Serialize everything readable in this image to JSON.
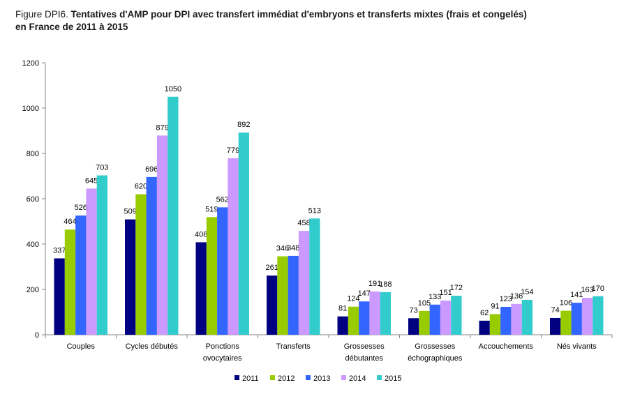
{
  "title_prefix": "Figure DPI6.",
  "title_line1": "Tentatives d'AMP pour DPI avec transfert immédiat d'embryons et transferts mixtes (frais et congelés)",
  "title_line2": "en France de 2011 à 2015",
  "chart_data": {
    "type": "bar",
    "ylim": [
      0,
      1200
    ],
    "yticks": [
      0,
      200,
      400,
      600,
      800,
      1000,
      1200
    ],
    "grid": false,
    "legend_position": "bottom",
    "categories": [
      [
        "Couples"
      ],
      [
        "Cycles débutés"
      ],
      [
        "Ponctions",
        "ovocytaires"
      ],
      [
        "Transferts"
      ],
      [
        "Grossesses",
        "débutantes"
      ],
      [
        "Grossesses",
        "échographiques"
      ],
      [
        "Accouchements"
      ],
      [
        "Nés vivants"
      ]
    ],
    "series": [
      {
        "name": "2011",
        "color": "#000080",
        "values": [
          337,
          509,
          408,
          261,
          81,
          73,
          62,
          74
        ]
      },
      {
        "name": "2012",
        "color": "#99CC00",
        "values": [
          464,
          620,
          519,
          346,
          124,
          105,
          91,
          106
        ]
      },
      {
        "name": "2013",
        "color": "#3366FF",
        "values": [
          526,
          696,
          562,
          348,
          147,
          133,
          123,
          141
        ]
      },
      {
        "name": "2014",
        "color": "#CC99FF",
        "values": [
          645,
          879,
          779,
          458,
          191,
          151,
          136,
          163
        ]
      },
      {
        "name": "2015",
        "color": "#33CCCC",
        "values": [
          703,
          1050,
          892,
          513,
          188,
          172,
          154,
          170
        ]
      }
    ]
  }
}
